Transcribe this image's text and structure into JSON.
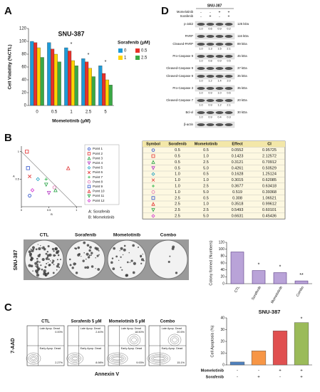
{
  "panel_labels": [
    "A",
    "B",
    "C",
    "D"
  ],
  "chart_data": [
    {
      "type": "bar",
      "title": "SNU-387",
      "y_label": "Cell Viability (%CTL)",
      "x_label": "Momelotinib (μM)",
      "legend_title": "Sorafenib (μM)",
      "categories": [
        "0",
        "0.5",
        "1",
        "2.5",
        "5"
      ],
      "series": [
        {
          "name": "0",
          "color": "#1e9ad6",
          "values": [
            100,
            98,
            90,
            73,
            62
          ]
        },
        {
          "name": "0.5",
          "color": "#e8312a",
          "values": [
            98,
            88,
            85,
            68,
            50
          ]
        },
        {
          "name": "1",
          "color": "#ffd400",
          "values": [
            90,
            80,
            70,
            58,
            40
          ]
        },
        {
          "name": "2.5",
          "color": "#3aa845",
          "values": [
            75,
            68,
            62,
            45,
            32
          ]
        }
      ],
      "ylim": [
        0,
        120
      ],
      "yticks": [
        0,
        20,
        40,
        60,
        80,
        100,
        120
      ],
      "annotations": [
        {
          "category": "1",
          "text": "*"
        },
        {
          "category": "2.5",
          "text": "*"
        },
        {
          "category": "5",
          "text": "*"
        }
      ]
    },
    {
      "type": "scatter",
      "x_label": "B",
      "y_label": "A",
      "xlim": [
        0,
        1.1
      ],
      "ylim": [
        0,
        1.1
      ],
      "xticks": [
        0,
        0.5,
        1
      ],
      "yticks": [
        0.5,
        1
      ],
      "x": [
        0.15,
        0.1,
        0.62,
        0.5,
        0.3,
        0.15,
        0.45,
        0.6,
        0.12,
        0.85,
        0.45,
        0.2
      ],
      "y": [
        0.2,
        1.0,
        0.3,
        0.25,
        0.5,
        0.55,
        0.5,
        0.35,
        0.7,
        0.7,
        0.4,
        0.3
      ],
      "names": [
        "Point 1",
        "Point 2",
        "Point 3",
        "Point 4",
        "Point 5",
        "Point 6",
        "Point 7",
        "Point 8",
        "Point 9",
        "Point 10",
        "Point 11",
        "Point 12"
      ],
      "symbols": [
        {
          "shape": "hexagon",
          "color": "#3355cc"
        },
        {
          "shape": "square",
          "color": "#e03030"
        },
        {
          "shape": "triangle",
          "color": "#20a040"
        },
        {
          "shape": "down-triangle",
          "color": "#b030c0"
        },
        {
          "shape": "diamond",
          "color": "#20a0c0"
        },
        {
          "shape": "x",
          "color": "#e03030"
        },
        {
          "shape": "plus",
          "color": "#20b040"
        },
        {
          "shape": "circle",
          "color": "#e070b0"
        },
        {
          "shape": "square",
          "color": "#3355cc"
        },
        {
          "shape": "triangle",
          "color": "#e03030"
        },
        {
          "shape": "down-triangle",
          "color": "#20a040"
        },
        {
          "shape": "diamond",
          "color": "#d030d0"
        }
      ],
      "notes": [
        "A: Sorafenib",
        "B: Momelotinib"
      ]
    },
    {
      "type": "bar",
      "y_label": "Colony formed (Numbers)",
      "categories": [
        "CTL",
        "Sorafenib",
        "Momelotinib",
        "Combo"
      ],
      "values": [
        92,
        38,
        32,
        8
      ],
      "color": "#b9a3d8",
      "ylim": [
        0,
        120
      ],
      "yticks": [
        0,
        20,
        40,
        60,
        80,
        100,
        120
      ],
      "annotations": [
        {
          "category": "Sorafenib",
          "text": "*"
        },
        {
          "category": "Momelotinib",
          "text": "*"
        },
        {
          "category": "Combo",
          "text": "**"
        }
      ]
    },
    {
      "type": "bar",
      "title": "SNU-387",
      "y_label": "Cell Apoptosis (%)",
      "values": [
        2.5,
        12,
        29,
        36
      ],
      "colors": [
        "#4f81bd",
        "#f79646",
        "#e05050",
        "#9bbb59"
      ],
      "ylim": [
        0,
        40
      ],
      "yticks": [
        0,
        10,
        20,
        30,
        40
      ],
      "treatments": [
        {
          "name": "Momelotinib",
          "signs": [
            "-",
            "-",
            "+",
            "+"
          ]
        },
        {
          "name": "Sorafenib",
          "signs": [
            "-",
            "+",
            "-",
            "+"
          ]
        }
      ],
      "annotations": [
        {
          "index": 3,
          "text": "*"
        }
      ]
    }
  ],
  "western_blot": {
    "title": "SNU-387",
    "treatments": [
      {
        "name": "Momelotinib",
        "signs": [
          "-",
          "-",
          "+",
          "+"
        ]
      },
      {
        "name": "Sorafenib",
        "signs": [
          "-",
          "+",
          "-",
          "+"
        ]
      }
    ],
    "blots": [
      {
        "label": "p-Jak2",
        "kda": "125 kDa",
        "quant": [
          "1.0",
          "0.6",
          "0.9",
          "0.2"
        ]
      },
      {
        "label": "PARP",
        "kda": "116 kDa"
      },
      {
        "label": "Cleaved-PARP",
        "kda": "89 kDa",
        "quant": [
          "1.0",
          "1.3",
          "1.5",
          "2.1"
        ]
      },
      {
        "label": "Pro-Caspase 9",
        "kda": "45 kDa",
        "quant": [
          "1.0",
          "0.8",
          "0.9",
          "0.5"
        ]
      },
      {
        "label": "Cleaved-Caspase 9",
        "kda": "37 kDa"
      },
      {
        "label": "Cleaved-Caspase 9",
        "kda": "35 kDa",
        "quant": [
          "1.0",
          "1.2",
          "1.4",
          "2.0"
        ]
      },
      {
        "label": "Pro-Caspase 3",
        "kda": "35 kDa",
        "quant": [
          "1.0",
          "0.9",
          "1.0",
          "0.6"
        ]
      },
      {
        "label": "Cleaved-Caspase 7",
        "kda": "20 kDa",
        "quant": [
          "1.0",
          "0.9",
          "1.2",
          "2.1"
        ]
      },
      {
        "label": "Bcl-xl",
        "kda": "30 kDa",
        "quant": [
          "1.0",
          "0.9",
          "0.4",
          "0.3"
        ]
      },
      {
        "label": "β-actin"
      }
    ]
  },
  "ci_table": {
    "header": [
      "Symbol",
      "Sorafenib",
      "Momelotinib",
      "Effect",
      "CI"
    ],
    "rows": [
      [
        "0.5",
        "0.5",
        "0.0552",
        "0.95725"
      ],
      [
        "0.5",
        "1.0",
        "0.1423",
        "2.12572"
      ],
      [
        "0.5",
        "2.5",
        "0.3121",
        "0.70912"
      ],
      [
        "0.5",
        "5.0",
        "0.4261",
        "0.50529"
      ],
      [
        "1.0",
        "0.5",
        "0.1628",
        "1.25124"
      ],
      [
        "1.0",
        "1.0",
        "0.3015",
        "0.62085"
      ],
      [
        "1.0",
        "2.5",
        "0.3677",
        "0.63418"
      ],
      [
        "1.0",
        "5.0",
        "0.519",
        "0.39368"
      ],
      [
        "2.5",
        "0.5",
        "0.308",
        "1.06521"
      ],
      [
        "2.5",
        "1.0",
        "0.3518",
        "0.99612"
      ],
      [
        "2.5",
        "2.5",
        "0.5493",
        "0.60101"
      ],
      [
        "2.5",
        "5.0",
        "0.6631",
        "0.45436"
      ]
    ]
  },
  "colony_images": {
    "cell_line": "SNU-387",
    "titles": [
      "CTL",
      "Sorafenib",
      "Momelotinib",
      "Combo"
    ]
  },
  "flow": {
    "y_label": "7-AAD",
    "x_label": "Annexin V",
    "panels": [
      {
        "title": "CTL",
        "late_label": "Late Apop. Dead",
        "late": "0.00%",
        "early_label": "Early Apop. Dead",
        "early": "2.27%"
      },
      {
        "title": "Sorafenib 5 μM",
        "late_label": "Late Apop. Dead",
        "late": "2.40%",
        "early_label": "Early Apop. Dead",
        "early": "8.98%"
      },
      {
        "title": "Momelotinib 5 μM",
        "late_label": "Late Apop. Dead",
        "late": "18.50%",
        "early_label": "Early Apop. Dead",
        "early": "9.93%"
      },
      {
        "title": "Combo",
        "late_label": "Late Apop. Dead",
        "late": "20.5%",
        "early_label": "Early Apop. Dead",
        "early": "15.1%"
      }
    ]
  }
}
